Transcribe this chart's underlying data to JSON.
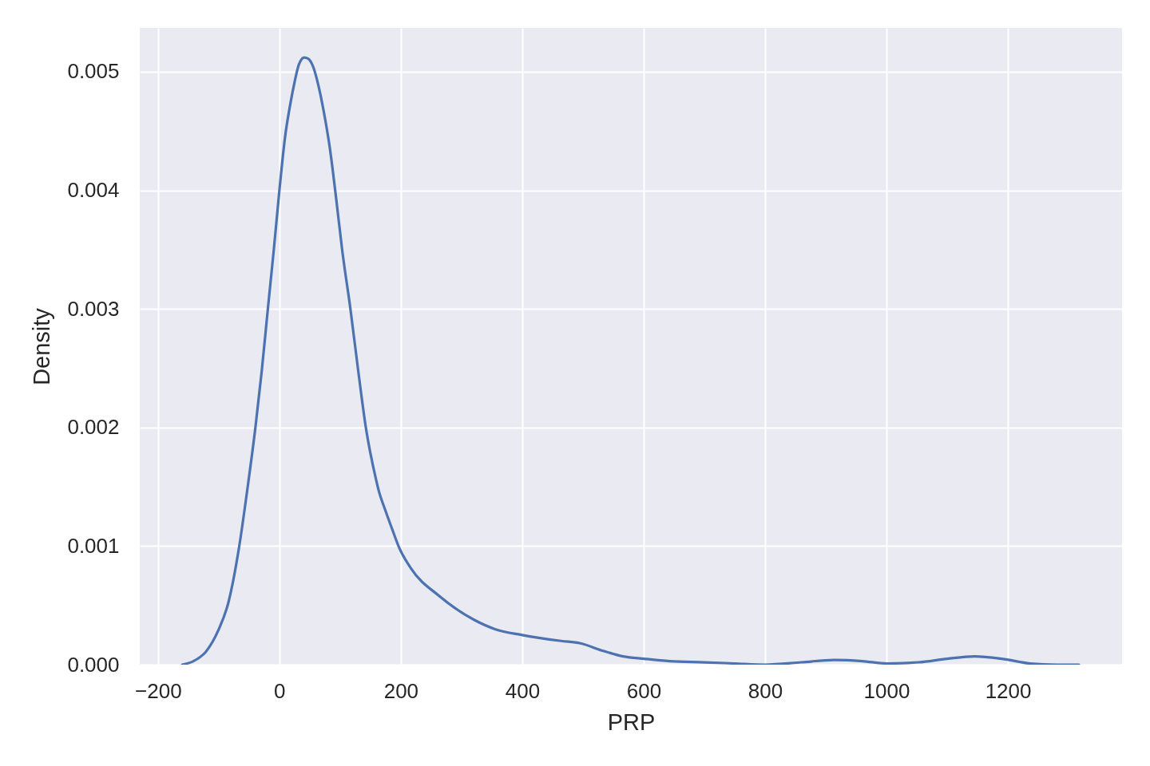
{
  "chart_data": {
    "type": "line",
    "xlabel": "PRP",
    "ylabel": "Density",
    "x": [
      -160,
      -141.5,
      -121,
      -100.6,
      -83.7,
      -66.7,
      -53,
      -39.5,
      -29,
      -19,
      -8.8,
      0,
      9.6,
      18.4,
      25.3,
      32,
      41,
      47.6,
      55.8,
      62.6,
      72.9,
      83,
      93.3,
      103.6,
      117,
      130.8,
      142.4,
      158.8,
      163,
      174.6,
      186,
      197,
      217,
      263,
      320,
      355,
      400,
      464,
      496,
      531,
      566,
      601,
      643,
      700,
      750,
      800,
      860,
      914,
      960,
      1001,
      1053,
      1100,
      1145,
      1190,
      1237,
      1280,
      1317
    ],
    "series": [
      {
        "color": "#4c72b0",
        "values": [
          0.0,
          3e-05,
          0.00011,
          0.00029,
          0.00053,
          0.00098,
          0.00147,
          0.002,
          0.00248,
          0.003,
          0.00352,
          0.004,
          0.00446,
          0.00474,
          0.00492,
          0.00506,
          0.00512,
          0.00511,
          0.00504,
          0.00492,
          0.00467,
          0.00436,
          0.00394,
          0.00349,
          0.003,
          0.00244,
          0.002,
          0.00157,
          0.00148,
          0.0013,
          0.00114,
          0.00099,
          0.00081,
          0.00058,
          0.00038,
          0.0003,
          0.00025,
          0.0002,
          0.00018,
          0.00012,
          7e-05,
          5e-05,
          3e-05,
          2e-05,
          1e-05,
          0.0,
          2e-05,
          4e-05,
          3e-05,
          1e-05,
          2e-05,
          5e-05,
          7e-05,
          5e-05,
          1e-05,
          0.0,
          0.0
        ]
      }
    ],
    "xlim": [
      -230,
      1388
    ],
    "ylim": [
      0,
      0.00537
    ],
    "xticks": [
      -200,
      0,
      200,
      400,
      600,
      800,
      1000,
      1200
    ],
    "yticks": [
      {
        "value": 0,
        "label": "0.000"
      },
      {
        "value": 0.001,
        "label": "0.001"
      },
      {
        "value": 0.002,
        "label": "0.002"
      },
      {
        "value": 0.003,
        "label": "0.003"
      },
      {
        "value": 0.004,
        "label": "0.004"
      },
      {
        "value": 0.005,
        "label": "0.005"
      }
    ],
    "grid": true
  }
}
